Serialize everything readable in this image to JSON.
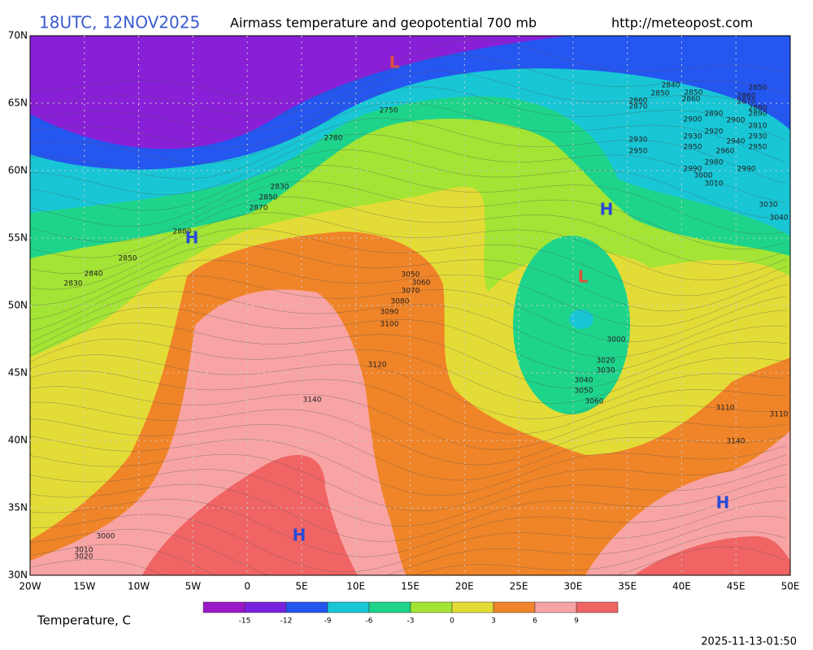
{
  "header": {
    "time": "18UTC, 12NOV2025",
    "title": "Airmass temperature and geopotential 700 mb",
    "url": "http://meteopost.com"
  },
  "lat_labels": [
    "70N",
    "65N",
    "60N",
    "55N",
    "50N",
    "45N",
    "40N",
    "35N",
    "30N"
  ],
  "lon_labels": [
    "20W",
    "15W",
    "10W",
    "5W",
    "0",
    "5E",
    "10E",
    "15E",
    "20E",
    "25E",
    "30E",
    "35E",
    "40E",
    "45E",
    "50E"
  ],
  "legend": {
    "title": "Temperature, C",
    "colors": [
      "#9a18c8",
      "#7a22e0",
      "#2456f0",
      "#18c6d6",
      "#1ed48a",
      "#a3e434",
      "#e4dc36",
      "#f08428",
      "#f8a4a4",
      "#f06464"
    ],
    "ticks": [
      -15,
      -12,
      -9,
      -6,
      -3,
      0,
      3,
      6,
      9
    ]
  },
  "pressure_centers": [
    {
      "label": "L",
      "color": "#e0503c"
    },
    {
      "label": "H",
      "color": "#2a4bd7"
    },
    {
      "label": "H",
      "color": "#2a4bd7"
    },
    {
      "label": "L",
      "color": "#e0503c"
    },
    {
      "label": "H",
      "color": "#2a4bd7"
    },
    {
      "label": "H",
      "color": "#2a4bd7"
    }
  ],
  "contour_labels": [
    2750,
    2780,
    2830,
    2850,
    2870,
    2880,
    2850,
    2840,
    2830,
    3050,
    3060,
    3070,
    3080,
    3090,
    3100,
    3120,
    3140,
    3000,
    3010,
    3020,
    3000,
    3020,
    3030,
    3040,
    3050,
    3060,
    3110,
    3110,
    3140,
    2840,
    2850,
    2860,
    2870,
    2850,
    2860,
    2850,
    2860,
    2870,
    2880,
    2890,
    2890,
    2900,
    2900,
    2910,
    2930,
    2950,
    2930,
    2920,
    2940,
    2930,
    2950,
    2950,
    2960,
    2980,
    2990,
    2990,
    3000,
    3010,
    3030,
    3040
  ],
  "timestamp": "2025-11-13-01:50"
}
